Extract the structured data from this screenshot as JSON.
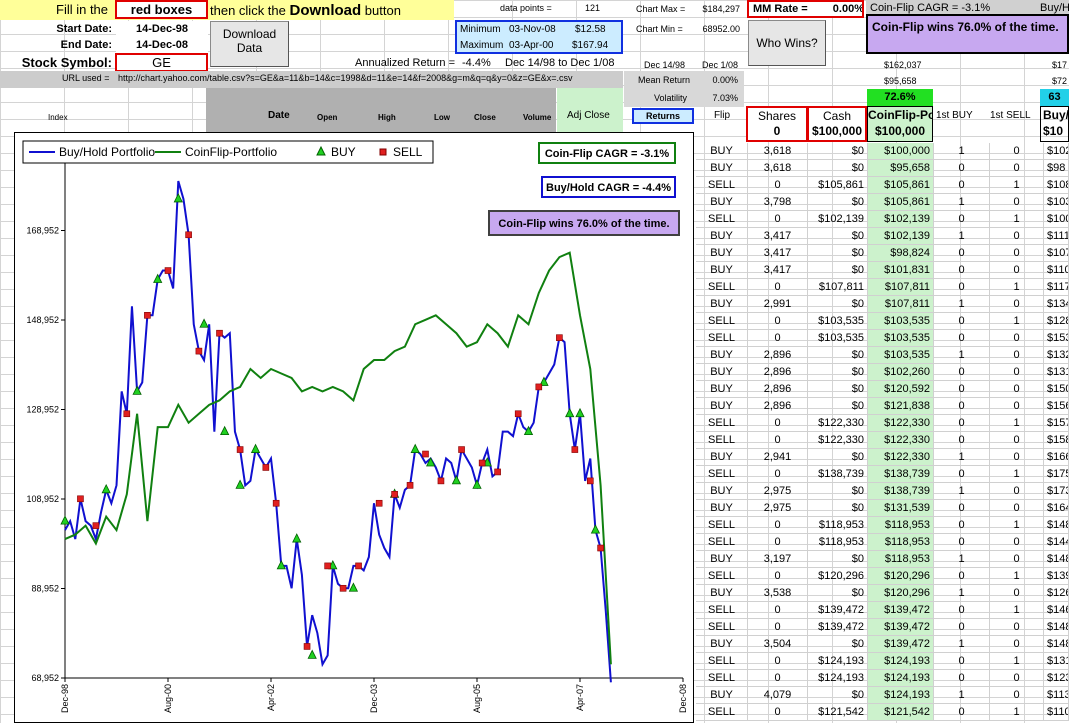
{
  "top": {
    "fill_in_the": "Fill in the",
    "red_boxes": "red boxes",
    "then_click": "then click the",
    "download_word": "Download",
    "button_word": "button",
    "start_label": "Start Date:",
    "start_value": "14-Dec-98",
    "end_label": "End Date:",
    "end_value": "14-Dec-08",
    "symbol_label": "Stock Symbol:",
    "symbol_value": "GE",
    "download_btn": "Download Data",
    "data_points_label": "data points =",
    "data_points_value": "121",
    "min_label": "Minimum",
    "min_date": "03-Nov-08",
    "min_value": "$12.58",
    "max_label": "Maximum",
    "max_date": "03-Apr-00",
    "max_value": "$167.94",
    "annualized_label": "Annualized Return =",
    "annualized_value": "-4.4%",
    "annualized_range": "Dec 14/98 to Dec 1/08",
    "url_label": "URL used =",
    "url_value": "http://chart.yahoo.com/table.csv?s=GE&a=11&b=14&c=1998&d=11&e=14&f=2008&g=m&q=q&y=0&z=GE&x=.csv",
    "chart_max_label": "Chart Max =",
    "chart_max_value": "$184,297",
    "chart_min_label": "Chart Min =",
    "chart_min_value": "68952.00",
    "dec1498": "Dec 14/98",
    "dec108": "Dec 1/08",
    "mean_return_label": "Mean Return",
    "mean_return_value": "0.00%",
    "volatility_label": "Volatility",
    "volatility_value": "7.03%",
    "mm_rate_label": "MM Rate =",
    "mm_rate_value": "0.00%",
    "who_wins_btn": "Who Wins?",
    "coinflip_cagr_header": "Coin-Flip CAGR = -3.1%",
    "buyhold_header": "Buy/H",
    "coinflip_wins_box": "Coin-Flip wins 76.0% of the time.",
    "v_162037": "$162,037",
    "v_95658": "$95,658",
    "v_17": "$17",
    "v_72": "$72",
    "pct_726": "72.6%",
    "pct_63": "63"
  },
  "headers": {
    "index": "Index",
    "date": "Date",
    "open": "Open",
    "high": "High",
    "low": "Low",
    "close": "Close",
    "volume": "Volume",
    "adj_close": "Adj Close",
    "returns": "Returns",
    "flip": "Flip",
    "shares": "Shares",
    "cash": "Cash",
    "coinflip_port": "CoinFlip-Por",
    "first_buy": "1st  BUY",
    "first_sell": "1st SELL",
    "buyh": "Buy/H",
    "shares_init": "0",
    "cash_init": "$100,000",
    "port_init": "$100,000",
    "buyh_init": "$10"
  },
  "chart_data": {
    "type": "line",
    "legend": [
      "Buy/Hold Portfolio",
      "CoinFlip-Portfolio",
      "BUY",
      "SELL"
    ],
    "annotations": [
      "Coin-Flip CAGR = -3.1%",
      "Buy/Hold CAGR = -4.4%",
      "Coin-Flip wins 76.0% of the time."
    ],
    "ylim": [
      68952,
      188952
    ],
    "y_ticks": [
      "68,952",
      "88,952",
      "108,952",
      "128,952",
      "148,952",
      "168,952"
    ],
    "x_ticks": [
      "Dec-98",
      "Aug-00",
      "Apr-02",
      "Dec-03",
      "Aug-05",
      "Apr-07",
      "Dec-08"
    ],
    "x_range": [
      0,
      120
    ],
    "series": [
      {
        "name": "Buy/Hold Portfolio",
        "color": "#1010d0",
        "points": [
          [
            0,
            102
          ],
          [
            1,
            104
          ],
          [
            2,
            100
          ],
          [
            3,
            109
          ],
          [
            4,
            104
          ],
          [
            5,
            103
          ],
          [
            6,
            100
          ],
          [
            7,
            106
          ],
          [
            8,
            111
          ],
          [
            9,
            108
          ],
          [
            10,
            112
          ],
          [
            11,
            133
          ],
          [
            12,
            128
          ],
          [
            13,
            152
          ],
          [
            14,
            133
          ],
          [
            15,
            135
          ],
          [
            16,
            150
          ],
          [
            17,
            150
          ],
          [
            18,
            158
          ],
          [
            19,
            160
          ],
          [
            20,
            160
          ],
          [
            21,
            156
          ],
          [
            22,
            180
          ],
          [
            23,
            176
          ],
          [
            24,
            168
          ],
          [
            25,
            148
          ],
          [
            26,
            142
          ],
          [
            27,
            140
          ],
          [
            28,
            148
          ],
          [
            29,
            124
          ],
          [
            30,
            146
          ],
          [
            31,
            145
          ],
          [
            32,
            146
          ],
          [
            33,
            124
          ],
          [
            34,
            120
          ],
          [
            35,
            112
          ],
          [
            36,
            113
          ],
          [
            37,
            120
          ],
          [
            38,
            118
          ],
          [
            39,
            116
          ],
          [
            40,
            118
          ],
          [
            41,
            108
          ],
          [
            42,
            94
          ],
          [
            43,
            94
          ],
          [
            44,
            89
          ],
          [
            45,
            100
          ],
          [
            46,
            92
          ],
          [
            47,
            76
          ],
          [
            48,
            83
          ],
          [
            49,
            79
          ],
          [
            50,
            72
          ],
          [
            51,
            74
          ],
          [
            52,
            94
          ],
          [
            53,
            90
          ],
          [
            54,
            89
          ],
          [
            55,
            89
          ],
          [
            56,
            94
          ],
          [
            57,
            94
          ],
          [
            58,
            93
          ],
          [
            59,
            96
          ],
          [
            60,
            108
          ],
          [
            61,
            101
          ],
          [
            62,
            98
          ],
          [
            63,
            96
          ],
          [
            64,
            110
          ],
          [
            65,
            107
          ],
          [
            66,
            111
          ],
          [
            67,
            112
          ],
          [
            68,
            120
          ],
          [
            69,
            119
          ],
          [
            70,
            117
          ],
          [
            71,
            118
          ],
          [
            72,
            116
          ],
          [
            73,
            113
          ],
          [
            74,
            118
          ],
          [
            75,
            117
          ],
          [
            76,
            113
          ],
          [
            77,
            120
          ],
          [
            78,
            118
          ],
          [
            79,
            116
          ],
          [
            80,
            112
          ],
          [
            81,
            117
          ],
          [
            82,
            120
          ],
          [
            83,
            114
          ],
          [
            84,
            115
          ],
          [
            85,
            124
          ],
          [
            86,
            124
          ],
          [
            87,
            123
          ],
          [
            88,
            128
          ],
          [
            89,
            125
          ],
          [
            90,
            124
          ],
          [
            91,
            126
          ],
          [
            92,
            134
          ],
          [
            93,
            135
          ],
          [
            94,
            137
          ],
          [
            95,
            139
          ],
          [
            96,
            145
          ],
          [
            97,
            144
          ],
          [
            98,
            128
          ],
          [
            99,
            120
          ],
          [
            100,
            128
          ],
          [
            101,
            113
          ],
          [
            102,
            118
          ],
          [
            103,
            102
          ],
          [
            104,
            98
          ],
          [
            105,
            84
          ],
          [
            106,
            68
          ]
        ]
      },
      {
        "name": "CoinFlip-Portfolio",
        "color": "#108010",
        "points": [
          [
            0,
            100
          ],
          [
            2,
            101
          ],
          [
            4,
            103
          ],
          [
            6,
            99
          ],
          [
            8,
            105
          ],
          [
            10,
            102
          ],
          [
            12,
            110
          ],
          [
            14,
            128
          ],
          [
            16,
            104
          ],
          [
            18,
            125
          ],
          [
            20,
            125
          ],
          [
            22,
            130
          ],
          [
            24,
            126
          ],
          [
            26,
            128
          ],
          [
            28,
            130
          ],
          [
            30,
            131
          ],
          [
            32,
            133
          ],
          [
            34,
            134
          ],
          [
            36,
            138
          ],
          [
            38,
            136
          ],
          [
            40,
            138
          ],
          [
            42,
            137
          ],
          [
            44,
            136
          ],
          [
            46,
            133
          ],
          [
            48,
            134
          ],
          [
            50,
            133
          ],
          [
            52,
            134
          ],
          [
            54,
            133
          ],
          [
            56,
            131
          ],
          [
            58,
            138
          ],
          [
            60,
            140
          ],
          [
            62,
            140
          ],
          [
            64,
            142
          ],
          [
            66,
            143
          ],
          [
            68,
            148
          ],
          [
            70,
            149
          ],
          [
            72,
            150
          ],
          [
            74,
            148
          ],
          [
            76,
            146
          ],
          [
            78,
            143
          ],
          [
            80,
            144
          ],
          [
            82,
            148
          ],
          [
            84,
            146
          ],
          [
            86,
            143
          ],
          [
            88,
            150
          ],
          [
            90,
            148
          ],
          [
            92,
            155
          ],
          [
            94,
            160
          ],
          [
            96,
            163
          ],
          [
            98,
            164
          ],
          [
            100,
            150
          ],
          [
            102,
            138
          ],
          [
            104,
            112
          ],
          [
            106,
            72
          ]
        ]
      }
    ],
    "buy_markers": [
      [
        0,
        104
      ],
      [
        8,
        111
      ],
      [
        14,
        133
      ],
      [
        18,
        158
      ],
      [
        22,
        176
      ],
      [
        27,
        148
      ],
      [
        31,
        124
      ],
      [
        34,
        112
      ],
      [
        37,
        120
      ],
      [
        42,
        94
      ],
      [
        45,
        100
      ],
      [
        48,
        74
      ],
      [
        52,
        94
      ],
      [
        56,
        89
      ],
      [
        64,
        110
      ],
      [
        68,
        120
      ],
      [
        71,
        117
      ],
      [
        76,
        113
      ],
      [
        80,
        112
      ],
      [
        82,
        117
      ],
      [
        90,
        124
      ],
      [
        93,
        135
      ],
      [
        98,
        128
      ],
      [
        100,
        128
      ],
      [
        103,
        102
      ]
    ],
    "sell_markers": [
      [
        3,
        109
      ],
      [
        6,
        103
      ],
      [
        12,
        128
      ],
      [
        16,
        150
      ],
      [
        20,
        160
      ],
      [
        24,
        168
      ],
      [
        26,
        142
      ],
      [
        30,
        146
      ],
      [
        34,
        120
      ],
      [
        39,
        116
      ],
      [
        41,
        108
      ],
      [
        47,
        76
      ],
      [
        51,
        94
      ],
      [
        54,
        89
      ],
      [
        57,
        94
      ],
      [
        61,
        108
      ],
      [
        64,
        110
      ],
      [
        67,
        112
      ],
      [
        70,
        119
      ],
      [
        73,
        113
      ],
      [
        77,
        120
      ],
      [
        81,
        117
      ],
      [
        84,
        115
      ],
      [
        88,
        128
      ],
      [
        92,
        134
      ],
      [
        96,
        145
      ],
      [
        99,
        120
      ],
      [
        102,
        113
      ],
      [
        104,
        98
      ]
    ]
  },
  "table": [
    {
      "flip": "BUY",
      "shares": "3,618",
      "cash": "$0",
      "port": "$100,000",
      "b": "1",
      "s": "0",
      "last": "$102"
    },
    {
      "flip": "BUY",
      "shares": "3,618",
      "cash": "$0",
      "port": "$95,658",
      "b": "0",
      "s": "0",
      "last": "$98"
    },
    {
      "flip": "SELL",
      "shares": "0",
      "cash": "$105,861",
      "port": "$105,861",
      "b": "0",
      "s": "1",
      "last": "$108"
    },
    {
      "flip": "BUY",
      "shares": "3,798",
      "cash": "$0",
      "port": "$105,861",
      "b": "1",
      "s": "0",
      "last": "$103"
    },
    {
      "flip": "SELL",
      "shares": "0",
      "cash": "$102,139",
      "port": "$102,139",
      "b": "0",
      "s": "1",
      "last": "$100"
    },
    {
      "flip": "BUY",
      "shares": "3,417",
      "cash": "$0",
      "port": "$102,139",
      "b": "1",
      "s": "0",
      "last": "$111"
    },
    {
      "flip": "BUY",
      "shares": "3,417",
      "cash": "$0",
      "port": "$98,824",
      "b": "0",
      "s": "0",
      "last": "$107"
    },
    {
      "flip": "BUY",
      "shares": "3,417",
      "cash": "$0",
      "port": "$101,831",
      "b": "0",
      "s": "0",
      "last": "$110"
    },
    {
      "flip": "SELL",
      "shares": "0",
      "cash": "$107,811",
      "port": "$107,811",
      "b": "0",
      "s": "1",
      "last": "$117"
    },
    {
      "flip": "BUY",
      "shares": "2,991",
      "cash": "$0",
      "port": "$107,811",
      "b": "1",
      "s": "0",
      "last": "$134"
    },
    {
      "flip": "SELL",
      "shares": "0",
      "cash": "$103,535",
      "port": "$103,535",
      "b": "0",
      "s": "1",
      "last": "$128"
    },
    {
      "flip": "SELL",
      "shares": "0",
      "cash": "$103,535",
      "port": "$103,535",
      "b": "0",
      "s": "0",
      "last": "$153"
    },
    {
      "flip": "BUY",
      "shares": "2,896",
      "cash": "$0",
      "port": "$103,535",
      "b": "1",
      "s": "0",
      "last": "$132"
    },
    {
      "flip": "BUY",
      "shares": "2,896",
      "cash": "$0",
      "port": "$102,260",
      "b": "0",
      "s": "0",
      "last": "$131"
    },
    {
      "flip": "BUY",
      "shares": "2,896",
      "cash": "$0",
      "port": "$120,592",
      "b": "0",
      "s": "0",
      "last": "$150"
    },
    {
      "flip": "BUY",
      "shares": "2,896",
      "cash": "$0",
      "port": "$121,838",
      "b": "0",
      "s": "0",
      "last": "$156"
    },
    {
      "flip": "SELL",
      "shares": "0",
      "cash": "$122,330",
      "port": "$122,330",
      "b": "0",
      "s": "1",
      "last": "$157"
    },
    {
      "flip": "SELL",
      "shares": "0",
      "cash": "$122,330",
      "port": "$122,330",
      "b": "0",
      "s": "0",
      "last": "$158"
    },
    {
      "flip": "BUY",
      "shares": "2,941",
      "cash": "$0",
      "port": "$122,330",
      "b": "1",
      "s": "0",
      "last": "$166"
    },
    {
      "flip": "SELL",
      "shares": "0",
      "cash": "$138,739",
      "port": "$138,739",
      "b": "0",
      "s": "1",
      "last": "$175"
    },
    {
      "flip": "BUY",
      "shares": "2,975",
      "cash": "$0",
      "port": "$138,739",
      "b": "1",
      "s": "0",
      "last": "$173"
    },
    {
      "flip": "BUY",
      "shares": "2,975",
      "cash": "$0",
      "port": "$131,539",
      "b": "0",
      "s": "0",
      "last": "$164"
    },
    {
      "flip": "SELL",
      "shares": "0",
      "cash": "$118,953",
      "port": "$118,953",
      "b": "0",
      "s": "1",
      "last": "$148"
    },
    {
      "flip": "SELL",
      "shares": "0",
      "cash": "$118,953",
      "port": "$118,953",
      "b": "0",
      "s": "0",
      "last": "$144"
    },
    {
      "flip": "BUY",
      "shares": "3,197",
      "cash": "$0",
      "port": "$118,953",
      "b": "1",
      "s": "0",
      "last": "$148"
    },
    {
      "flip": "SELL",
      "shares": "0",
      "cash": "$120,296",
      "port": "$120,296",
      "b": "0",
      "s": "1",
      "last": "$139"
    },
    {
      "flip": "BUY",
      "shares": "3,538",
      "cash": "$0",
      "port": "$120,296",
      "b": "1",
      "s": "0",
      "last": "$126"
    },
    {
      "flip": "SELL",
      "shares": "0",
      "cash": "$139,472",
      "port": "$139,472",
      "b": "0",
      "s": "1",
      "last": "$146"
    },
    {
      "flip": "SELL",
      "shares": "0",
      "cash": "$139,472",
      "port": "$139,472",
      "b": "0",
      "s": "0",
      "last": "$148"
    },
    {
      "flip": "BUY",
      "shares": "3,504",
      "cash": "$0",
      "port": "$139,472",
      "b": "1",
      "s": "0",
      "last": "$148"
    },
    {
      "flip": "SELL",
      "shares": "0",
      "cash": "$124,193",
      "port": "$124,193",
      "b": "0",
      "s": "1",
      "last": "$131"
    },
    {
      "flip": "SELL",
      "shares": "0",
      "cash": "$124,193",
      "port": "$124,193",
      "b": "0",
      "s": "0",
      "last": "$123"
    },
    {
      "flip": "BUY",
      "shares": "4,079",
      "cash": "$0",
      "port": "$124,193",
      "b": "1",
      "s": "0",
      "last": "$113"
    },
    {
      "flip": "SELL",
      "shares": "0",
      "cash": "$121,542",
      "port": "$121,542",
      "b": "0",
      "s": "1",
      "last": "$110"
    }
  ]
}
